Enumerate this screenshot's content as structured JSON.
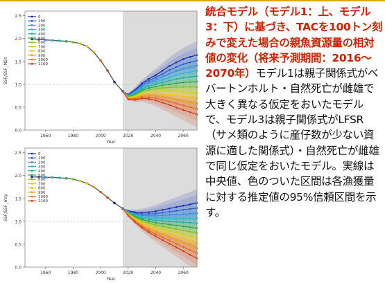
{
  "caption": {
    "title": "統合モデル（モデル1：上、モデル3：下）に基づき、TACを100トン刻みで変えた場合の親魚資源量の相対値の変化（将来予測期間：2016〜2070年）",
    "body": "モデル1は親子関係式がベバートンホルト・自然死亡が雌雄で大きく異なる仮定をおいたモデルで、モデル3は親子関係式がLFSR（サメ類のように産仔数が少ない資源に適した関係式）・自然死亡が雌雄で同じ仮定をおいたモデル。実線は中央値、色のついた区間は各漁獲量に対する推定値の95%信頼区間を示す。"
  },
  "chart_data": [
    {
      "type": "line",
      "title": "",
      "xlabel": "Year",
      "ylabel": "SSF/SSF_MSY",
      "xlim": [
        1945,
        2070
      ],
      "ylim": [
        0,
        2.6
      ],
      "xticks": [
        1960,
        1980,
        2000,
        2020,
        2040,
        2060
      ],
      "yticks": [
        0.0,
        0.5,
        1.0,
        1.5,
        2.0,
        2.5
      ],
      "projection_start": 2016,
      "reference_line": 1.0,
      "legend_position": "top-left",
      "years": [
        1950,
        1955,
        1960,
        1965,
        1970,
        1975,
        1980,
        1985,
        1990,
        1995,
        2000,
        2005,
        2010,
        2016
      ],
      "historical": [
        1.99,
        1.98,
        1.97,
        1.96,
        1.95,
        1.94,
        1.92,
        1.89,
        1.83,
        1.7,
        1.52,
        1.3,
        1.05,
        0.85
      ],
      "projection_years": [
        2016,
        2020,
        2025,
        2030,
        2035,
        2040,
        2045,
        2050,
        2055,
        2060,
        2065,
        2070
      ],
      "series": [
        {
          "name": "0",
          "color": "#1f2aa6",
          "values": [
            0.85,
            0.78,
            0.88,
            1.02,
            1.12,
            1.2,
            1.3,
            1.4,
            1.48,
            1.55,
            1.6,
            1.64
          ]
        },
        {
          "name": "100",
          "color": "#2e5ad6",
          "values": [
            0.85,
            0.77,
            0.86,
            0.99,
            1.08,
            1.15,
            1.23,
            1.31,
            1.38,
            1.44,
            1.48,
            1.52
          ]
        },
        {
          "name": "200",
          "color": "#3a8fe0",
          "values": [
            0.85,
            0.76,
            0.84,
            0.96,
            1.04,
            1.1,
            1.17,
            1.23,
            1.29,
            1.34,
            1.38,
            1.41
          ]
        },
        {
          "name": "300",
          "color": "#2ab7d8",
          "values": [
            0.85,
            0.75,
            0.82,
            0.93,
            1.0,
            1.05,
            1.1,
            1.15,
            1.2,
            1.24,
            1.27,
            1.3
          ]
        },
        {
          "name": "400",
          "color": "#17b3a3",
          "values": [
            0.85,
            0.74,
            0.8,
            0.9,
            0.96,
            1.0,
            1.04,
            1.08,
            1.11,
            1.14,
            1.16,
            1.18
          ]
        },
        {
          "name": "500",
          "color": "#2aa84a",
          "values": [
            0.85,
            0.73,
            0.78,
            0.87,
            0.92,
            0.95,
            0.98,
            1.0,
            1.02,
            1.04,
            1.05,
            1.06
          ]
        },
        {
          "name": "600",
          "color": "#7ec422",
          "values": [
            0.85,
            0.72,
            0.76,
            0.84,
            0.88,
            0.9,
            0.92,
            0.93,
            0.94,
            0.94,
            0.94,
            0.94
          ]
        },
        {
          "name": "700",
          "color": "#c9d61a",
          "values": [
            0.85,
            0.71,
            0.74,
            0.81,
            0.84,
            0.85,
            0.86,
            0.86,
            0.85,
            0.84,
            0.83,
            0.82
          ]
        },
        {
          "name": "800",
          "color": "#f0c419",
          "values": [
            0.85,
            0.7,
            0.72,
            0.78,
            0.8,
            0.8,
            0.79,
            0.78,
            0.76,
            0.74,
            0.72,
            0.7
          ]
        },
        {
          "name": "900",
          "color": "#f39c12",
          "values": [
            0.85,
            0.69,
            0.7,
            0.75,
            0.76,
            0.75,
            0.73,
            0.7,
            0.67,
            0.64,
            0.61,
            0.58
          ]
        },
        {
          "name": "1000",
          "color": "#e8631b",
          "values": [
            0.85,
            0.68,
            0.68,
            0.72,
            0.72,
            0.7,
            0.66,
            0.62,
            0.58,
            0.54,
            0.5,
            0.46
          ]
        },
        {
          "name": "1100",
          "color": "#d63a18",
          "values": [
            0.85,
            0.67,
            0.66,
            0.69,
            0.68,
            0.65,
            0.6,
            0.55,
            0.49,
            0.44,
            0.39,
            0.34
          ]
        }
      ]
    },
    {
      "type": "line",
      "title": "",
      "xlabel": "Year",
      "ylabel": "SSF/SSF_msy",
      "xlim": [
        1945,
        2070
      ],
      "ylim": [
        0,
        2.6
      ],
      "xticks": [
        1960,
        1980,
        2000,
        2020,
        2040,
        2060
      ],
      "yticks": [
        0.0,
        0.5,
        1.0,
        1.5,
        2.0,
        2.5
      ],
      "projection_start": 2016,
      "reference_line": 1.0,
      "legend_position": "top-left",
      "years": [
        1950,
        1955,
        1960,
        1965,
        1970,
        1975,
        1980,
        1985,
        1990,
        1995,
        2000,
        2005,
        2010,
        2016
      ],
      "historical": [
        1.97,
        1.97,
        1.96,
        1.96,
        1.95,
        1.94,
        1.92,
        1.88,
        1.83,
        1.75,
        1.64,
        1.52,
        1.4,
        1.28
      ],
      "projection_years": [
        2016,
        2020,
        2025,
        2030,
        2035,
        2040,
        2045,
        2050,
        2055,
        2060,
        2065,
        2070
      ],
      "series": [
        {
          "name": "0",
          "color": "#1f2aa6",
          "values": [
            1.28,
            1.23,
            1.2,
            1.19,
            1.2,
            1.22,
            1.25,
            1.28,
            1.31,
            1.34,
            1.37,
            1.4
          ]
        },
        {
          "name": "100",
          "color": "#2e5ad6",
          "values": [
            1.28,
            1.22,
            1.18,
            1.16,
            1.16,
            1.17,
            1.19,
            1.21,
            1.23,
            1.25,
            1.27,
            1.29
          ]
        },
        {
          "name": "200",
          "color": "#3a8fe0",
          "values": [
            1.28,
            1.21,
            1.16,
            1.13,
            1.12,
            1.12,
            1.13,
            1.14,
            1.15,
            1.16,
            1.17,
            1.18
          ]
        },
        {
          "name": "300",
          "color": "#2ab7d8",
          "values": [
            1.28,
            1.2,
            1.14,
            1.1,
            1.08,
            1.07,
            1.07,
            1.07,
            1.07,
            1.07,
            1.07,
            1.07
          ]
        },
        {
          "name": "400",
          "color": "#17b3a3",
          "values": [
            1.28,
            1.19,
            1.12,
            1.07,
            1.04,
            1.02,
            1.01,
            1.0,
            0.99,
            0.98,
            0.97,
            0.96
          ]
        },
        {
          "name": "500",
          "color": "#2aa84a",
          "values": [
            1.28,
            1.18,
            1.1,
            1.04,
            1.0,
            0.97,
            0.95,
            0.93,
            0.91,
            0.89,
            0.87,
            0.85
          ]
        },
        {
          "name": "600",
          "color": "#7ec422",
          "values": [
            1.28,
            1.17,
            1.08,
            1.01,
            0.96,
            0.92,
            0.89,
            0.86,
            0.83,
            0.8,
            0.77,
            0.74
          ]
        },
        {
          "name": "700",
          "color": "#c9d61a",
          "values": [
            1.28,
            1.16,
            1.06,
            0.98,
            0.92,
            0.87,
            0.83,
            0.79,
            0.75,
            0.71,
            0.67,
            0.63
          ]
        },
        {
          "name": "800",
          "color": "#f0c419",
          "values": [
            1.28,
            1.15,
            1.04,
            0.95,
            0.88,
            0.82,
            0.77,
            0.72,
            0.67,
            0.62,
            0.57,
            0.52
          ]
        },
        {
          "name": "900",
          "color": "#f39c12",
          "values": [
            1.28,
            1.14,
            1.02,
            0.92,
            0.84,
            0.77,
            0.71,
            0.65,
            0.59,
            0.53,
            0.47,
            0.41
          ]
        },
        {
          "name": "1000",
          "color": "#e8631b",
          "values": [
            1.28,
            1.13,
            1.0,
            0.89,
            0.8,
            0.72,
            0.65,
            0.58,
            0.51,
            0.44,
            0.37,
            0.3
          ]
        },
        {
          "name": "1100",
          "color": "#d63a18",
          "values": [
            1.28,
            1.12,
            0.98,
            0.86,
            0.76,
            0.67,
            0.59,
            0.51,
            0.43,
            0.35,
            0.27,
            0.19
          ]
        }
      ]
    }
  ]
}
